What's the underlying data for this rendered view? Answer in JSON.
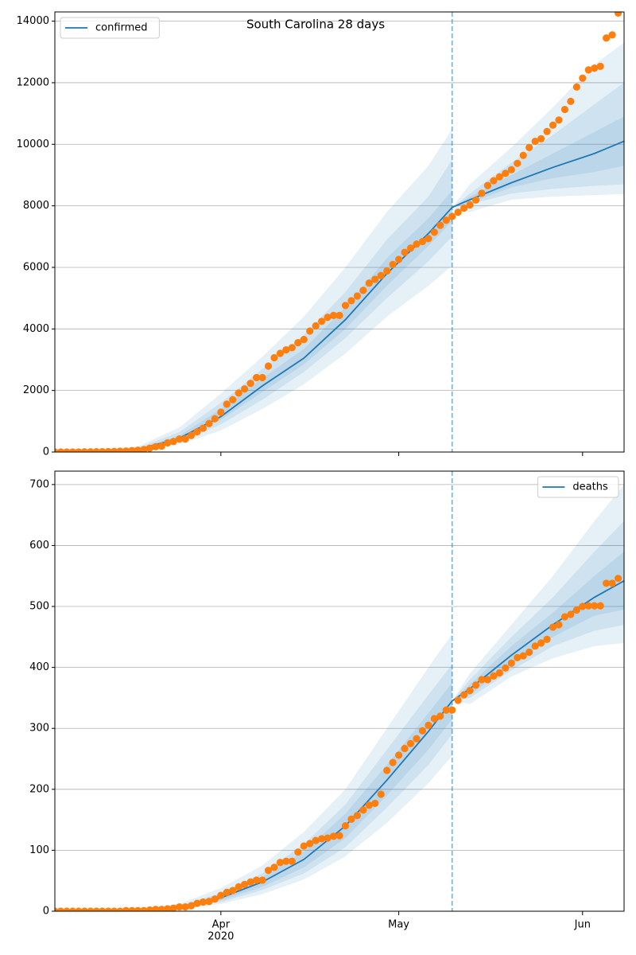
{
  "chart_data": [
    {
      "type": "line",
      "title": "South Carolina 28 days",
      "legend": "upper left",
      "grid": true,
      "xlim": [
        64,
        160
      ],
      "xticks": [
        92,
        122,
        153
      ],
      "xtick_labels": false,
      "ylim": [
        0,
        14300
      ],
      "yticks": [
        0,
        2000,
        4000,
        6000,
        8000,
        10000,
        12000,
        14000
      ],
      "vline": 131,
      "vline_color": "#1f77b4",
      "observed": {
        "color": "#ff7f0e",
        "x": [
          64,
          65,
          66,
          67,
          68,
          69,
          70,
          71,
          72,
          73,
          74,
          75,
          76,
          77,
          78,
          79,
          80,
          81,
          82,
          83,
          84,
          85,
          86,
          87,
          88,
          89,
          90,
          91,
          92,
          93,
          94,
          95,
          96,
          97,
          98,
          99,
          100,
          101,
          102,
          103,
          104,
          105,
          106,
          107,
          108,
          109,
          110,
          111,
          112,
          113,
          114,
          115,
          116,
          117,
          118,
          119,
          120,
          121,
          122,
          123,
          124,
          125,
          126,
          127,
          128,
          129,
          130,
          131,
          132,
          133,
          134,
          135,
          136,
          137,
          138,
          139,
          140,
          141,
          142,
          143,
          144,
          145,
          146,
          147,
          148,
          149,
          150,
          151,
          152,
          153,
          154,
          155,
          156,
          157,
          158,
          159
        ],
        "values": [
          0,
          0,
          0,
          2,
          2,
          6,
          7,
          9,
          10,
          13,
          19,
          28,
          33,
          47,
          60,
          81,
          125,
          173,
          195,
          298,
          342,
          424,
          424,
          539,
          660,
          774,
          925,
          1083,
          1293,
          1554,
          1700,
          1917,
          2049,
          2232,
          2417,
          2417,
          2792,
          3065,
          3207,
          3319,
          3391,
          3553,
          3656,
          3931,
          4099,
          4246,
          4377,
          4439,
          4439,
          4761,
          4917,
          5070,
          5253,
          5490,
          5613,
          5735,
          5882,
          6095,
          6258,
          6489,
          6626,
          6757,
          6841,
          6936,
          7142,
          7367,
          7531,
          7653,
          7792,
          7927,
          8030,
          8189,
          8407,
          8661,
          8816,
          8942,
          9056,
          9175,
          9379,
          9638,
          9895,
          10096,
          10178,
          10416,
          10623,
          10788,
          11131,
          11394,
          11861,
          12148,
          12415,
          12473,
          12531,
          13453,
          13553,
          14264
        ]
      },
      "series": [
        {
          "name": "confirmed",
          "color": "#1f77b4",
          "x": [
            64,
            71,
            78,
            85,
            92,
            99,
            106,
            113,
            120,
            127,
            131,
            134,
            141,
            148,
            155,
            160
          ],
          "values": [
            0,
            5,
            80,
            450,
            1150,
            2150,
            3050,
            4300,
            5800,
            7100,
            7950,
            8200,
            8750,
            9250,
            9700,
            10100
          ],
          "bands": [
            {
              "x": [
                64,
                71,
                78,
                85,
                92,
                99,
                106,
                113,
                120,
                127,
                131
              ],
              "lower": [
                0,
                0,
                30,
                250,
                700,
                1400,
                2200,
                3200,
                4400,
                5400,
                6050
              ],
              "upper": [
                0,
                20,
                180,
                800,
                1900,
                3100,
                4400,
                6000,
                7800,
                9300,
                10500
              ]
            },
            {
              "x": [
                64,
                71,
                78,
                85,
                92,
                99,
                106,
                113,
                120,
                127,
                131
              ],
              "lower": [
                0,
                0,
                50,
                330,
                900,
                1700,
                2600,
                3700,
                5000,
                6200,
                7000
              ],
              "upper": [
                0,
                12,
                130,
                650,
                1600,
                2700,
                3800,
                5200,
                6900,
                8300,
                9500
              ]
            },
            {
              "x": [
                64,
                71,
                78,
                85,
                92,
                99,
                106,
                113,
                120,
                127,
                131
              ],
              "lower": [
                0,
                2,
                65,
                390,
                1050,
                1950,
                2850,
                4000,
                5400,
                6700,
                7500
              ],
              "upper": [
                0,
                8,
                100,
                530,
                1400,
                2400,
                3350,
                4700,
                6300,
                7600,
                8500
              ]
            },
            {
              "x": [
                131,
                134,
                141,
                148,
                155,
                160
              ],
              "lower": [
                7950,
                7800,
                8200,
                8300,
                8350,
                8380
              ],
              "upper": [
                7950,
                8700,
                9900,
                11200,
                12600,
                13300
              ]
            },
            {
              "x": [
                131,
                134,
                141,
                148,
                155,
                160
              ],
              "lower": [
                7950,
                8050,
                8400,
                8550,
                8650,
                8700
              ],
              "upper": [
                7950,
                8400,
                9400,
                10300,
                11300,
                12000
              ]
            },
            {
              "x": [
                131,
                134,
                141,
                148,
                155,
                160
              ],
              "lower": [
                7950,
                8100,
                8600,
                8900,
                9100,
                9300
              ],
              "upper": [
                7950,
                8300,
                9000,
                9700,
                10400,
                10900
              ]
            }
          ]
        }
      ]
    },
    {
      "type": "line",
      "legend": "upper right",
      "grid": true,
      "xlim": [
        64,
        160
      ],
      "xticks": [
        {
          "value": 92,
          "label": "Apr"
        },
        {
          "value": 122,
          "label": "May"
        },
        {
          "value": 153,
          "label": "Jun"
        }
      ],
      "x_year": "2020",
      "ylim": [
        0,
        722
      ],
      "yticks": [
        0,
        100,
        200,
        300,
        400,
        500,
        600,
        700
      ],
      "vline": 131,
      "vline_color": "#1f77b4",
      "observed": {
        "color": "#ff7f0e",
        "x": [
          64,
          65,
          66,
          67,
          68,
          69,
          70,
          71,
          72,
          73,
          74,
          75,
          76,
          77,
          78,
          79,
          80,
          81,
          82,
          83,
          84,
          85,
          86,
          87,
          88,
          89,
          90,
          91,
          92,
          93,
          94,
          95,
          96,
          97,
          98,
          99,
          100,
          101,
          102,
          103,
          104,
          105,
          106,
          107,
          108,
          109,
          110,
          111,
          112,
          113,
          114,
          115,
          116,
          117,
          118,
          119,
          120,
          121,
          122,
          123,
          124,
          125,
          126,
          127,
          128,
          129,
          130,
          131,
          132,
          133,
          134,
          135,
          136,
          137,
          138,
          139,
          140,
          141,
          142,
          143,
          144,
          145,
          146,
          147,
          148,
          149,
          150,
          151,
          152,
          153,
          154,
          155,
          156,
          157,
          158,
          159
        ],
        "values": [
          0,
          0,
          0,
          0,
          0,
          0,
          0,
          0,
          0,
          0,
          0,
          0,
          1,
          1,
          1,
          1,
          2,
          3,
          3,
          4,
          5,
          7,
          7,
          9,
          13,
          15,
          16,
          20,
          26,
          31,
          34,
          40,
          44,
          48,
          51,
          51,
          67,
          72,
          80,
          82,
          82,
          97,
          107,
          111,
          116,
          119,
          120,
          123,
          124,
          140,
          151,
          157,
          166,
          174,
          177,
          192,
          231,
          244,
          256,
          267,
          275,
          283,
          296,
          305,
          316,
          320,
          330,
          330,
          346,
          355,
          362,
          371,
          380,
          380,
          386,
          391,
          399,
          407,
          416,
          419,
          425,
          435,
          440,
          446,
          466,
          470,
          483,
          487,
          494,
          500,
          501,
          501,
          501,
          538,
          538,
          546
        ]
      },
      "series": [
        {
          "name": "deaths",
          "color": "#1f77b4",
          "x": [
            64,
            71,
            78,
            85,
            92,
            99,
            106,
            113,
            120,
            127,
            131,
            134,
            141,
            148,
            155,
            160
          ],
          "values": [
            0,
            0,
            1,
            6,
            22,
            48,
            85,
            140,
            215,
            295,
            345,
            365,
            420,
            470,
            515,
            542
          ],
          "bands": [
            {
              "x": [
                64,
                71,
                78,
                85,
                92,
                99,
                106,
                113,
                120,
                127,
                131
              ],
              "lower": [
                0,
                0,
                0,
                3,
                12,
                28,
                52,
                90,
                145,
                210,
                255
              ],
              "upper": [
                0,
                1,
                3,
                12,
                38,
                75,
                130,
                200,
                300,
                400,
                455
              ]
            },
            {
              "x": [
                64,
                71,
                78,
                85,
                92,
                99,
                106,
                113,
                120,
                127,
                131
              ],
              "lower": [
                0,
                0,
                0,
                4,
                15,
                35,
                62,
                105,
                170,
                240,
                290
              ],
              "upper": [
                0,
                1,
                2,
                9,
                30,
                62,
                110,
                175,
                265,
                355,
                405
              ]
            },
            {
              "x": [
                64,
                71,
                78,
                85,
                92,
                99,
                106,
                113,
                120,
                127,
                131
              ],
              "lower": [
                0,
                0,
                1,
                5,
                18,
                40,
                72,
                120,
                190,
                265,
                315
              ],
              "upper": [
                0,
                1,
                2,
                8,
                27,
                56,
                98,
                160,
                240,
                325,
                375
              ]
            },
            {
              "x": [
                131,
                134,
                141,
                148,
                155,
                160
              ],
              "lower": [
                345,
                340,
                385,
                415,
                435,
                440
              ],
              "upper": [
                345,
                390,
                470,
                550,
                640,
                700
              ]
            },
            {
              "x": [
                131,
                134,
                141,
                148,
                155,
                160
              ],
              "lower": [
                345,
                350,
                395,
                435,
                460,
                470
              ],
              "upper": [
                345,
                380,
                450,
                515,
                590,
                640
              ]
            },
            {
              "x": [
                131,
                134,
                141,
                148,
                155,
                160
              ],
              "lower": [
                345,
                355,
                405,
                450,
                485,
                495
              ],
              "upper": [
                345,
                372,
                435,
                490,
                550,
                590
              ]
            }
          ]
        }
      ]
    }
  ]
}
